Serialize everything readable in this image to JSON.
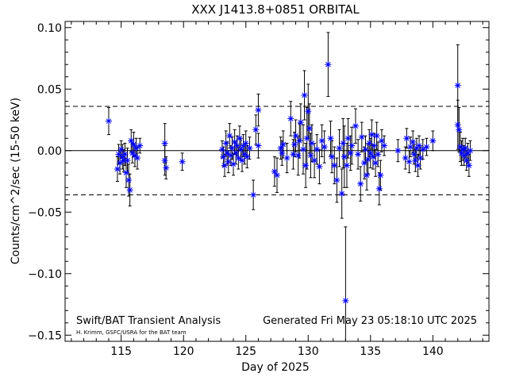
{
  "chart_data": {
    "type": "scatter",
    "title": "XXX J1413.8+0851 ORBITAL",
    "xlabel": "Day of 2025",
    "ylabel": "Counts/cm^2/sec (15-50 keV)",
    "xlim": [
      110.5,
      144.5
    ],
    "ylim": [
      -0.155,
      0.105
    ],
    "x_ticks": [
      "115",
      "120",
      "125",
      "130",
      "135",
      "140"
    ],
    "y_ticks": [
      "0.10",
      "0.05",
      "0.00",
      "−0.05",
      "−0.10",
      "−0.15"
    ],
    "zero_line": 0.0,
    "sigma_lines": [
      0.036,
      -0.036
    ],
    "marker_color": "#0000ff",
    "errorbar_color": "#000000",
    "footer_left": "Swift/BAT Transient Analysis",
    "footer_right": "Generated Fri May 23 05:18:10 UTC 2025",
    "credit": "H. Krimm, GSFC/USRA for the BAT team",
    "points": [
      {
        "x": 114.0,
        "y": 0.024,
        "err": 0.011
      },
      {
        "x": 114.7,
        "y": -0.015,
        "err": 0.01
      },
      {
        "x": 114.8,
        "y": -0.003,
        "err": 0.008
      },
      {
        "x": 114.9,
        "y": -0.01,
        "err": 0.009
      },
      {
        "x": 115.0,
        "y": 0.001,
        "err": 0.007
      },
      {
        "x": 115.1,
        "y": -0.005,
        "err": 0.01
      },
      {
        "x": 115.2,
        "y": -0.008,
        "err": 0.009
      },
      {
        "x": 115.3,
        "y": -0.003,
        "err": 0.009
      },
      {
        "x": 115.4,
        "y": -0.018,
        "err": 0.012
      },
      {
        "x": 115.5,
        "y": -0.008,
        "err": 0.01
      },
      {
        "x": 115.6,
        "y": -0.024,
        "err": 0.013
      },
      {
        "x": 115.7,
        "y": -0.032,
        "err": 0.013
      },
      {
        "x": 115.8,
        "y": 0.008,
        "err": 0.009
      },
      {
        "x": 115.9,
        "y": -0.002,
        "err": 0.008
      },
      {
        "x": 116.0,
        "y": 0.005,
        "err": 0.01
      },
      {
        "x": 116.1,
        "y": -0.004,
        "err": 0.009
      },
      {
        "x": 116.2,
        "y": 0.002,
        "err": 0.008
      },
      {
        "x": 116.3,
        "y": -0.006,
        "err": 0.009
      },
      {
        "x": 116.5,
        "y": 0.004,
        "err": 0.006
      },
      {
        "x": 118.5,
        "y": 0.006,
        "err": 0.016
      },
      {
        "x": 118.5,
        "y": -0.008,
        "err": 0.012
      },
      {
        "x": 118.6,
        "y": -0.014,
        "err": 0.009
      },
      {
        "x": 119.9,
        "y": -0.009,
        "err": 0.007
      },
      {
        "x": 123.1,
        "y": 0.001,
        "err": 0.007
      },
      {
        "x": 123.2,
        "y": -0.005,
        "err": 0.008
      },
      {
        "x": 123.3,
        "y": -0.012,
        "err": 0.009
      },
      {
        "x": 123.4,
        "y": 0.006,
        "err": 0.01
      },
      {
        "x": 123.5,
        "y": -0.002,
        "err": 0.009
      },
      {
        "x": 123.6,
        "y": -0.009,
        "err": 0.009
      },
      {
        "x": 123.7,
        "y": 0.012,
        "err": 0.01
      },
      {
        "x": 123.8,
        "y": -0.004,
        "err": 0.008
      },
      {
        "x": 123.9,
        "y": 0.002,
        "err": 0.009
      },
      {
        "x": 124.0,
        "y": -0.011,
        "err": 0.009
      },
      {
        "x": 124.1,
        "y": 0.007,
        "err": 0.01
      },
      {
        "x": 124.2,
        "y": -0.002,
        "err": 0.009
      },
      {
        "x": 124.3,
        "y": 0.004,
        "err": 0.008
      },
      {
        "x": 124.4,
        "y": -0.006,
        "err": 0.009
      },
      {
        "x": 124.5,
        "y": 0.01,
        "err": 0.01
      },
      {
        "x": 124.6,
        "y": 0.001,
        "err": 0.009
      },
      {
        "x": 124.7,
        "y": -0.008,
        "err": 0.009
      },
      {
        "x": 124.8,
        "y": 0.004,
        "err": 0.009
      },
      {
        "x": 124.9,
        "y": -0.003,
        "err": 0.008
      },
      {
        "x": 125.0,
        "y": 0.006,
        "err": 0.01
      },
      {
        "x": 125.1,
        "y": -0.005,
        "err": 0.009
      },
      {
        "x": 125.3,
        "y": 0.002,
        "err": 0.009
      },
      {
        "x": 125.6,
        "y": -0.036,
        "err": 0.012
      },
      {
        "x": 125.8,
        "y": 0.017,
        "err": 0.012
      },
      {
        "x": 126.0,
        "y": 0.033,
        "err": 0.013
      },
      {
        "x": 126.0,
        "y": 0.004,
        "err": 0.01
      },
      {
        "x": 127.3,
        "y": -0.017,
        "err": 0.012
      },
      {
        "x": 127.5,
        "y": -0.02,
        "err": 0.014
      },
      {
        "x": 127.8,
        "y": 0.002,
        "err": 0.009
      },
      {
        "x": 127.9,
        "y": -0.002,
        "err": 0.01
      },
      {
        "x": 128.0,
        "y": 0.005,
        "err": 0.011
      },
      {
        "x": 128.3,
        "y": -0.006,
        "err": 0.012
      },
      {
        "x": 128.6,
        "y": 0.026,
        "err": 0.014
      },
      {
        "x": 128.8,
        "y": -0.003,
        "err": 0.012
      },
      {
        "x": 128.9,
        "y": 0.005,
        "err": 0.01
      },
      {
        "x": 129.0,
        "y": 0.012,
        "err": 0.013
      },
      {
        "x": 129.2,
        "y": -0.004,
        "err": 0.016
      },
      {
        "x": 129.3,
        "y": 0.008,
        "err": 0.014
      },
      {
        "x": 129.4,
        "y": 0.023,
        "err": 0.015
      },
      {
        "x": 129.6,
        "y": 0.001,
        "err": 0.02
      },
      {
        "x": 129.7,
        "y": 0.045,
        "err": 0.02
      },
      {
        "x": 129.8,
        "y": -0.012,
        "err": 0.018
      },
      {
        "x": 129.9,
        "y": 0.01,
        "err": 0.025
      },
      {
        "x": 130.0,
        "y": 0.032,
        "err": 0.022
      },
      {
        "x": 130.1,
        "y": 0.018,
        "err": 0.02
      },
      {
        "x": 130.2,
        "y": -0.004,
        "err": 0.018
      },
      {
        "x": 130.3,
        "y": 0.006,
        "err": 0.015
      },
      {
        "x": 130.5,
        "y": -0.008,
        "err": 0.014
      },
      {
        "x": 130.7,
        "y": 0.001,
        "err": 0.012
      },
      {
        "x": 130.9,
        "y": -0.013,
        "err": 0.014
      },
      {
        "x": 131.1,
        "y": 0.008,
        "err": 0.013
      },
      {
        "x": 131.3,
        "y": 0.003,
        "err": 0.013
      },
      {
        "x": 131.6,
        "y": 0.07,
        "err": 0.026
      },
      {
        "x": 131.8,
        "y": 0.01,
        "err": 0.014
      },
      {
        "x": 131.9,
        "y": -0.005,
        "err": 0.013
      },
      {
        "x": 132.1,
        "y": -0.012,
        "err": 0.015
      },
      {
        "x": 132.3,
        "y": -0.024,
        "err": 0.018
      },
      {
        "x": 132.5,
        "y": 0.002,
        "err": 0.015
      },
      {
        "x": 132.7,
        "y": -0.035,
        "err": 0.02
      },
      {
        "x": 132.8,
        "y": 0.006,
        "err": 0.02
      },
      {
        "x": 132.9,
        "y": -0.005,
        "err": 0.025
      },
      {
        "x": 133.0,
        "y": -0.122,
        "err": 0.06
      },
      {
        "x": 133.1,
        "y": -0.012,
        "err": 0.018
      },
      {
        "x": 133.2,
        "y": 0.01,
        "err": 0.016
      },
      {
        "x": 133.4,
        "y": -0.002,
        "err": 0.014
      },
      {
        "x": 133.5,
        "y": 0.004,
        "err": 0.015
      },
      {
        "x": 133.8,
        "y": 0.02,
        "err": 0.014
      },
      {
        "x": 134.0,
        "y": -0.003,
        "err": 0.012
      },
      {
        "x": 134.2,
        "y": -0.027,
        "err": 0.014
      },
      {
        "x": 134.3,
        "y": 0.011,
        "err": 0.012
      },
      {
        "x": 134.5,
        "y": -0.01,
        "err": 0.013
      },
      {
        "x": 134.6,
        "y": 0.001,
        "err": 0.011
      },
      {
        "x": 134.7,
        "y": -0.02,
        "err": 0.012
      },
      {
        "x": 134.8,
        "y": -0.007,
        "err": 0.012
      },
      {
        "x": 134.9,
        "y": 0.006,
        "err": 0.011
      },
      {
        "x": 135.0,
        "y": -0.002,
        "err": 0.012
      },
      {
        "x": 135.1,
        "y": 0.013,
        "err": 0.012
      },
      {
        "x": 135.2,
        "y": -0.005,
        "err": 0.01
      },
      {
        "x": 135.3,
        "y": 0.004,
        "err": 0.01
      },
      {
        "x": 135.4,
        "y": -0.01,
        "err": 0.011
      },
      {
        "x": 135.5,
        "y": 0.012,
        "err": 0.011
      },
      {
        "x": 135.6,
        "y": -0.003,
        "err": 0.01
      },
      {
        "x": 135.7,
        "y": -0.031,
        "err": 0.013
      },
      {
        "x": 135.8,
        "y": -0.02,
        "err": 0.012
      },
      {
        "x": 135.9,
        "y": 0.008,
        "err": 0.009
      },
      {
        "x": 136.1,
        "y": 0.004,
        "err": 0.008
      },
      {
        "x": 137.2,
        "y": 0.0,
        "err": 0.009
      },
      {
        "x": 137.8,
        "y": -0.006,
        "err": 0.009
      },
      {
        "x": 137.9,
        "y": 0.01,
        "err": 0.008
      },
      {
        "x": 138.1,
        "y": -0.009,
        "err": 0.009
      },
      {
        "x": 138.2,
        "y": 0.003,
        "err": 0.008
      },
      {
        "x": 138.4,
        "y": 0.007,
        "err": 0.009
      },
      {
        "x": 138.5,
        "y": -0.003,
        "err": 0.008
      },
      {
        "x": 138.6,
        "y": -0.008,
        "err": 0.009
      },
      {
        "x": 138.7,
        "y": 0.002,
        "err": 0.008
      },
      {
        "x": 138.8,
        "y": -0.012,
        "err": 0.009
      },
      {
        "x": 138.9,
        "y": 0.004,
        "err": 0.008
      },
      {
        "x": 139.0,
        "y": -0.006,
        "err": 0.009
      },
      {
        "x": 139.2,
        "y": 0.001,
        "err": 0.008
      },
      {
        "x": 139.5,
        "y": 0.003,
        "err": 0.007
      },
      {
        "x": 140.0,
        "y": 0.008,
        "err": 0.008
      },
      {
        "x": 142.0,
        "y": 0.053,
        "err": 0.033
      },
      {
        "x": 142.0,
        "y": 0.021,
        "err": 0.02
      },
      {
        "x": 142.1,
        "y": 0.017,
        "err": 0.018
      },
      {
        "x": 142.2,
        "y": 0.003,
        "err": 0.012
      },
      {
        "x": 142.3,
        "y": -0.002,
        "err": 0.01
      },
      {
        "x": 142.4,
        "y": 0.001,
        "err": 0.009
      },
      {
        "x": 142.5,
        "y": -0.004,
        "err": 0.008
      },
      {
        "x": 142.6,
        "y": 0.002,
        "err": 0.008
      },
      {
        "x": 142.7,
        "y": -0.008,
        "err": 0.008
      },
      {
        "x": 142.8,
        "y": -0.002,
        "err": 0.008
      },
      {
        "x": 142.9,
        "y": -0.012,
        "err": 0.009
      },
      {
        "x": 143.0,
        "y": 0.0,
        "err": 0.008
      }
    ]
  }
}
